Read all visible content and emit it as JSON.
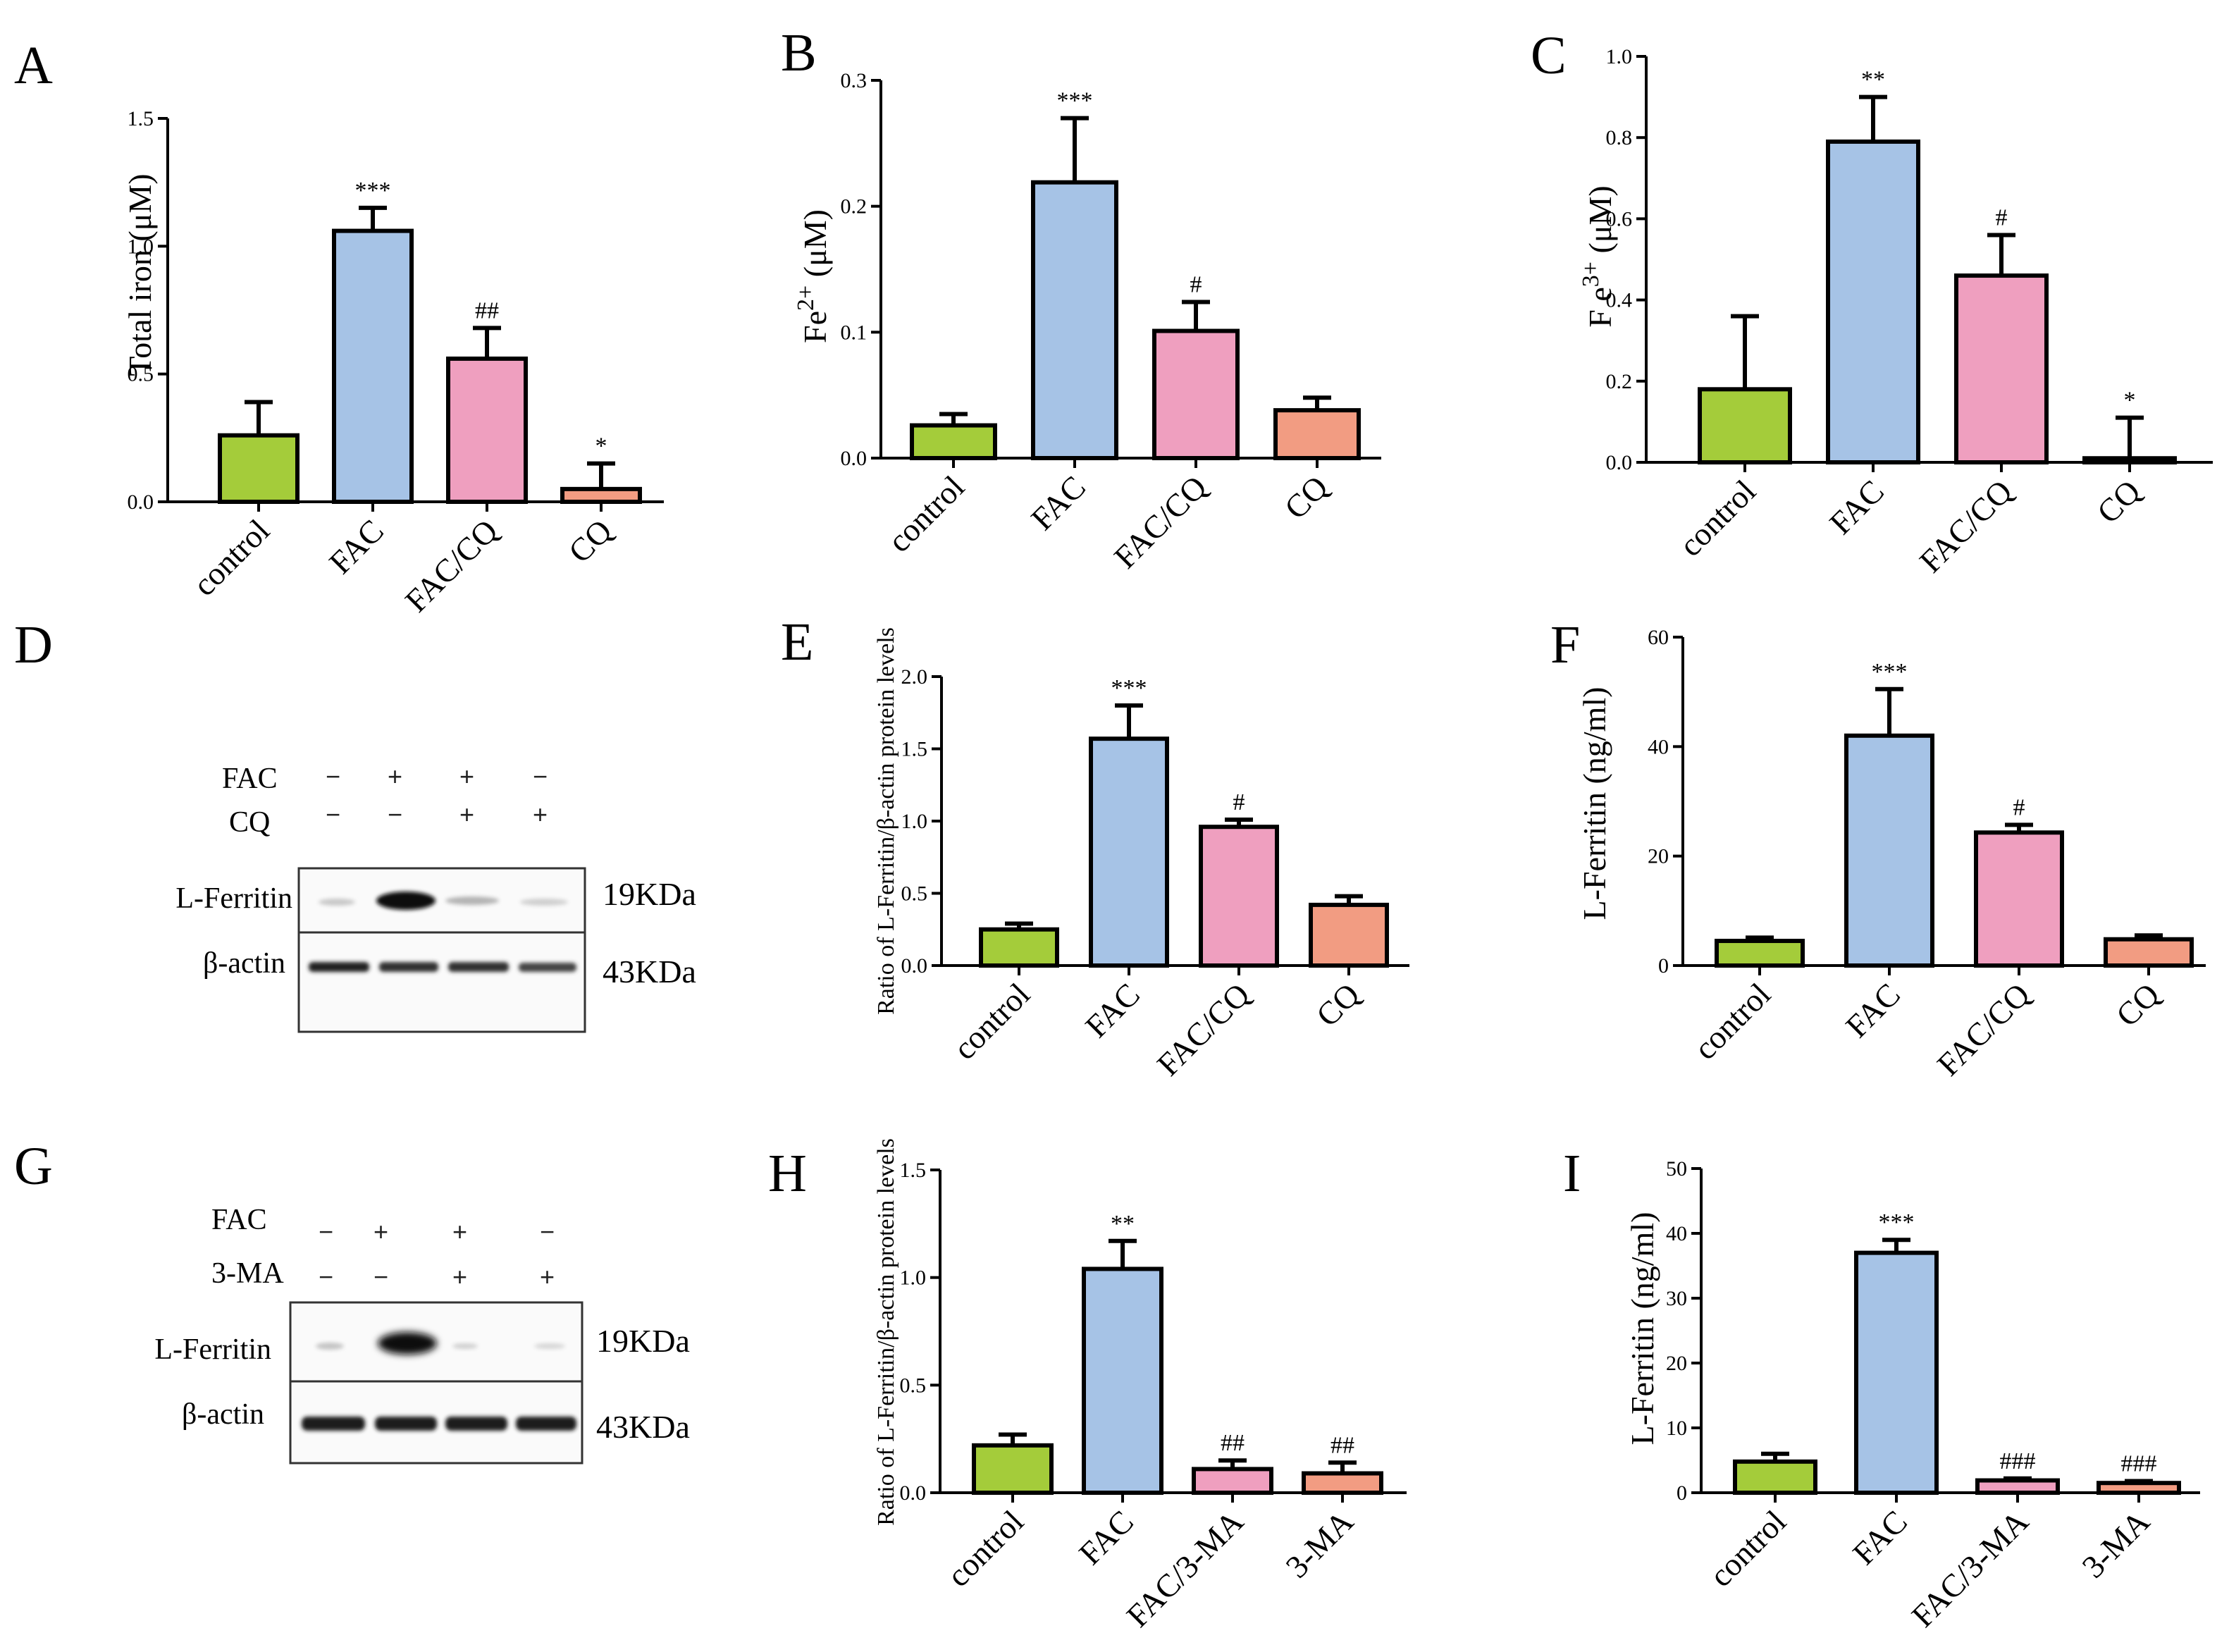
{
  "colors": {
    "control": "#a4cc3a",
    "fac": "#a6c3e6",
    "fac_cq": "#ef9fbf",
    "cq": "#f29c82"
  },
  "panel_letters": {
    "A": "A",
    "B": "B",
    "C": "C",
    "D": "D",
    "E": "E",
    "F": "F",
    "G": "G",
    "H": "H",
    "I": "I"
  },
  "blots": {
    "D": {
      "row_labels": [
        "FAC",
        "CQ"
      ],
      "signs": [
        [
          "−",
          "+",
          "+",
          "−"
        ],
        [
          "−",
          "−",
          "+",
          "+"
        ]
      ],
      "band_labels": [
        "L-Ferritin",
        "β-actin"
      ],
      "kda": [
        "19KDa",
        "43KDa"
      ]
    },
    "G": {
      "row_labels": [
        "FAC",
        "3-MA"
      ],
      "signs": [
        [
          "−",
          "+",
          "+",
          "−"
        ],
        [
          "−",
          "−",
          "+",
          "+"
        ]
      ],
      "band_labels": [
        "L-Ferritin",
        "β-actin"
      ],
      "kda": [
        "19KDa",
        "43KDa"
      ]
    }
  },
  "chart_data": [
    {
      "id": "A",
      "type": "bar",
      "categories": [
        "control",
        "FAC",
        "FAC/CQ",
        "CQ"
      ],
      "values": [
        0.26,
        1.06,
        0.56,
        0.05
      ],
      "errors": [
        0.13,
        0.09,
        0.12,
        0.1
      ],
      "annotations": [
        "",
        "***",
        "##",
        "*"
      ],
      "ylabel": "Total iron (μM)",
      "ylim": [
        0,
        1.5
      ],
      "yticks": [
        "0.0",
        "0.5",
        "1.0",
        "1.5"
      ],
      "ytick_values": [
        0,
        0.5,
        1.0,
        1.5
      ]
    },
    {
      "id": "B",
      "type": "bar",
      "categories": [
        "control",
        "FAC",
        "FAC/CQ",
        "CQ"
      ],
      "values": [
        0.026,
        0.219,
        0.101,
        0.038
      ],
      "errors": [
        0.009,
        0.051,
        0.023,
        0.01
      ],
      "annotations": [
        "",
        "***",
        "#",
        ""
      ],
      "ylabel": "Fe2+ (μM)",
      "ylabel_base": "Fe",
      "ylabel_sup": "2+",
      "ylabel_unit": "(μM)",
      "ylim": [
        0,
        0.3
      ],
      "yticks": [
        "0.0",
        "0.1",
        "0.2",
        "0.3"
      ],
      "ytick_values": [
        0,
        0.1,
        0.2,
        0.3
      ]
    },
    {
      "id": "C",
      "type": "bar",
      "categories": [
        "control",
        "FAC",
        "FAC/CQ",
        "CQ"
      ],
      "values": [
        0.18,
        0.79,
        0.46,
        0.01
      ],
      "errors": [
        0.18,
        0.11,
        0.1,
        0.1
      ],
      "annotations": [
        "",
        "**",
        "#",
        "*"
      ],
      "ylabel": "Fe3+ (μM)",
      "ylabel_base": "F e",
      "ylabel_sup": "3+",
      "ylabel_unit": "(μM)",
      "ylim": [
        0,
        1.0
      ],
      "yticks": [
        "0.0",
        "0.2",
        "0.4",
        "0.6",
        "0.8",
        "1.0"
      ],
      "ytick_values": [
        0,
        0.2,
        0.4,
        0.6,
        0.8,
        1.0
      ]
    },
    {
      "id": "E",
      "type": "bar",
      "categories": [
        "control",
        "FAC",
        "FAC/CQ",
        "CQ"
      ],
      "values": [
        0.25,
        1.57,
        0.96,
        0.42
      ],
      "errors": [
        0.04,
        0.23,
        0.05,
        0.06
      ],
      "annotations": [
        "",
        "***",
        "#",
        ""
      ],
      "ylabel": "Ratio of L-Ferritin/β-actin protein levels",
      "ylim": [
        0,
        2.0
      ],
      "yticks": [
        "0.0",
        "0.5",
        "1.0",
        "1.5",
        "2.0"
      ],
      "ytick_values": [
        0,
        0.5,
        1.0,
        1.5,
        2.0
      ]
    },
    {
      "id": "F",
      "type": "bar",
      "categories": [
        "control",
        "FAC",
        "FAC/CQ",
        "CQ"
      ],
      "values": [
        4.5,
        42,
        24.3,
        4.8
      ],
      "errors": [
        0.6,
        8.5,
        1.4,
        0.7
      ],
      "annotations": [
        "",
        "***",
        "#",
        ""
      ],
      "ylabel": "L-Ferritin (ng/ml)",
      "ylim": [
        0,
        60
      ],
      "yticks": [
        "0",
        "20",
        "40",
        "60"
      ],
      "ytick_values": [
        0,
        20,
        40,
        60
      ]
    },
    {
      "id": "H",
      "type": "bar",
      "categories": [
        "control",
        "FAC",
        "FAC/3-MA",
        "3-MA"
      ],
      "values": [
        0.22,
        1.04,
        0.11,
        0.09
      ],
      "errors": [
        0.05,
        0.13,
        0.04,
        0.05
      ],
      "annotations": [
        "",
        "**",
        "##",
        "##"
      ],
      "ylabel": "Ratio of L-Ferritin/β-actin protein levels",
      "ylim": [
        0,
        1.5
      ],
      "yticks": [
        "0.0",
        "0.5",
        "1.0",
        "1.5"
      ],
      "ytick_values": [
        0,
        0.5,
        1.0,
        1.5
      ]
    },
    {
      "id": "I",
      "type": "bar",
      "categories": [
        "control",
        "FAC",
        "FAC/3-MA",
        "3-MA"
      ],
      "values": [
        4.8,
        37,
        1.9,
        1.5
      ],
      "errors": [
        1.2,
        2.0,
        0.3,
        0.3
      ],
      "annotations": [
        "",
        "***",
        "###",
        "###"
      ],
      "ylabel": "L-Ferritin (ng/ml)",
      "ylim": [
        0,
        50
      ],
      "yticks": [
        "0",
        "10",
        "20",
        "30",
        "40",
        "50"
      ],
      "ytick_values": [
        0,
        10,
        20,
        30,
        40,
        50
      ]
    }
  ]
}
